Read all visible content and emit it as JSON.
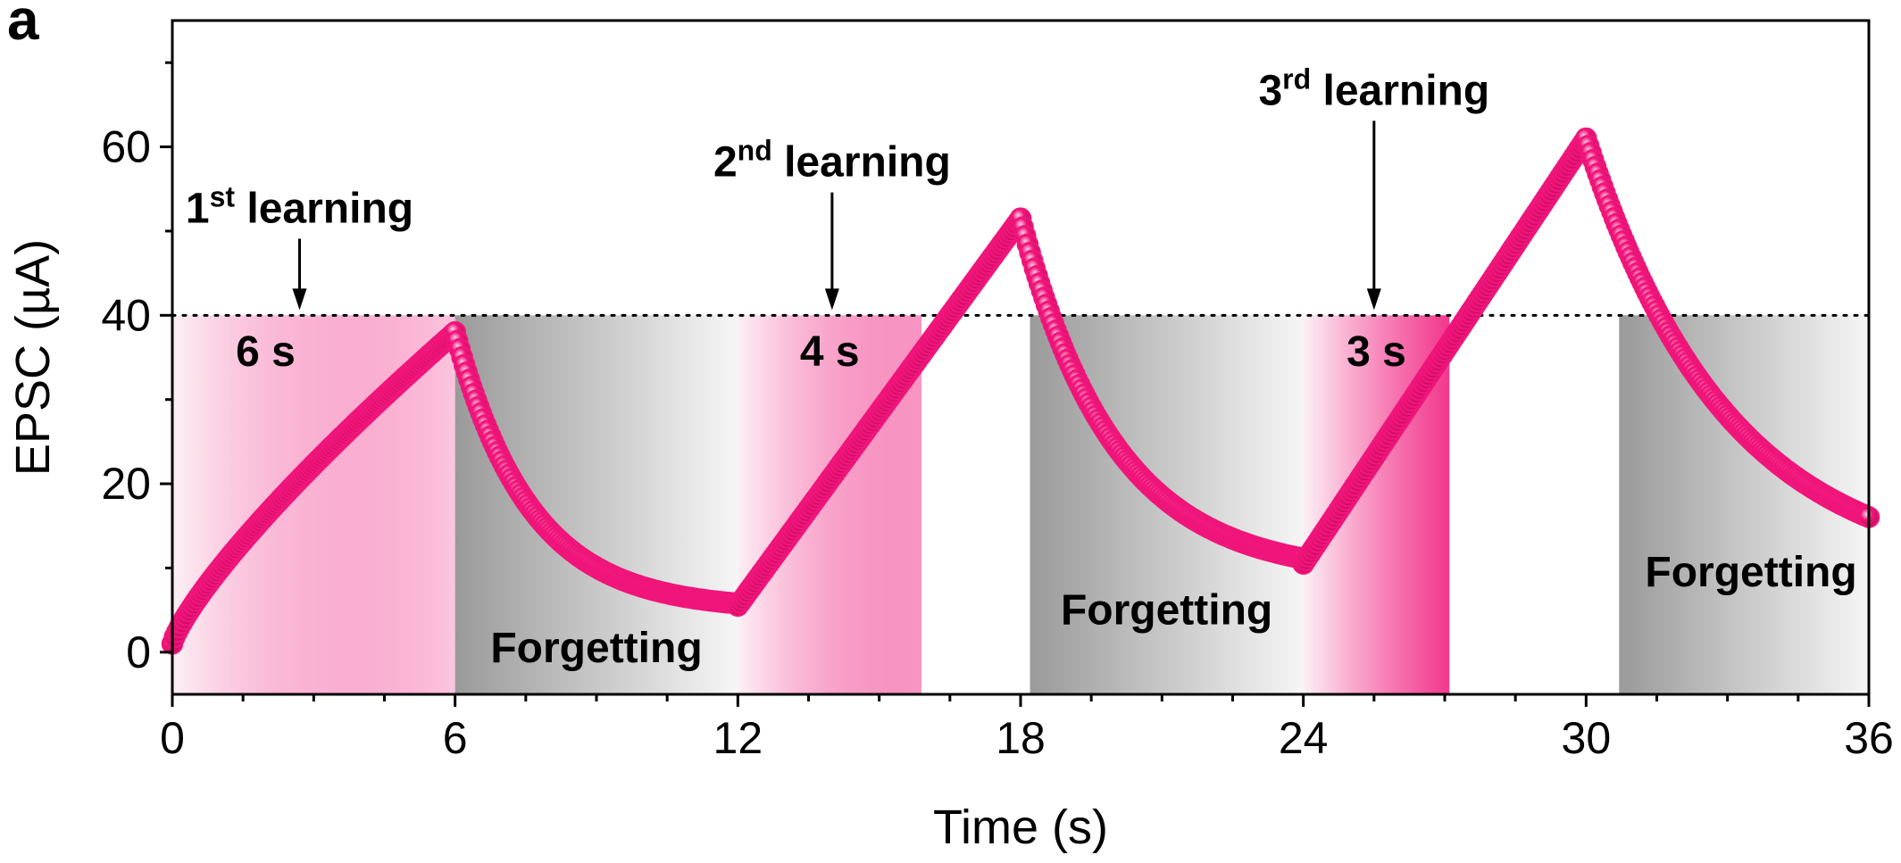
{
  "panel_label": "a",
  "chart_data": {
    "type": "scatter",
    "xlabel": "Time (s)",
    "ylabel": "EPSC (µA)",
    "xlim": [
      0,
      36
    ],
    "ylim": [
      -5,
      75
    ],
    "xticks": [
      0,
      6,
      12,
      18,
      24,
      30,
      36
    ],
    "yticks": [
      0,
      20,
      40,
      60
    ],
    "grid": false,
    "legend": "none",
    "marker_color": "#f0157a",
    "threshold": {
      "y": 40,
      "style": "dotted"
    },
    "learning_regions": [
      {
        "x_start": 0,
        "x_end": 6,
        "duration_label": "6 s",
        "strength": 0.25
      },
      {
        "x_start": 12,
        "x_end": 15.9,
        "duration_label": "4 s",
        "strength": 0.45
      },
      {
        "x_start": 24,
        "x_end": 27.1,
        "duration_label": "3 s",
        "strength": 0.85
      }
    ],
    "forgetting_regions": [
      {
        "x_start": 6,
        "x_end": 12,
        "label": "Forgetting",
        "label_x": 9,
        "label_y": 0.5
      },
      {
        "x_start": 18.2,
        "x_end": 24,
        "label": "Forgetting",
        "label_x": 21.1,
        "label_y": 5
      },
      {
        "x_start": 30.7,
        "x_end": 36,
        "label": "Forgetting",
        "label_x": 33.5,
        "label_y": 9.5
      }
    ],
    "annotations": [
      {
        "main": "1",
        "sup": "st",
        "rest": " learning",
        "x": 2.7,
        "text_y": 51,
        "arrow_tip_y": 40
      },
      {
        "main": "2",
        "sup": "nd",
        "rest": " learning",
        "x": 14,
        "text_y": 56.5,
        "arrow_tip_y": 40
      },
      {
        "main": "3",
        "sup": "rd",
        "rest": " learning",
        "x": 25.5,
        "text_y": 65,
        "arrow_tip_y": 40
      }
    ],
    "series": [
      {
        "segments": [
          {
            "type": "rise",
            "x0": 0,
            "x1": 6,
            "y0": 1,
            "y1": 38,
            "shape": 0.8
          },
          {
            "type": "decay",
            "x0": 6,
            "x1": 12,
            "y0": 38,
            "y_inf": 5,
            "tau": 1.6
          },
          {
            "type": "rise",
            "x0": 12,
            "x1": 18,
            "y0": 5.5,
            "y1": 51.5,
            "shape": 1.0
          },
          {
            "type": "decay",
            "x0": 18,
            "x1": 24,
            "y0": 51.5,
            "y_inf": 9,
            "tau": 2.0
          },
          {
            "type": "rise",
            "x0": 24,
            "x1": 30,
            "y0": 10.5,
            "y1": 61,
            "shape": 1.0
          },
          {
            "type": "decay",
            "x0": 30,
            "x1": 36,
            "y0": 61,
            "y_inf": 9,
            "tau": 3.0
          }
        ]
      }
    ]
  }
}
